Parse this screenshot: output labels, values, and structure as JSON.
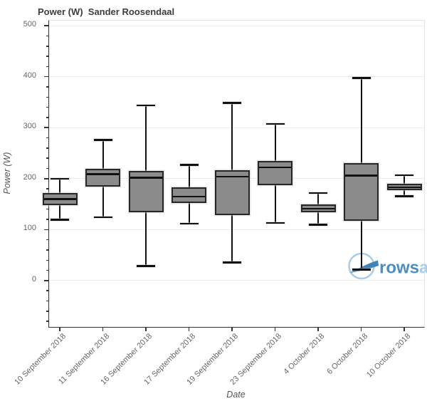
{
  "chart": {
    "title": "Power (W)  Sander Roosendaal",
    "y_axis_label": "Power (W)",
    "x_axis_label": "Date"
  },
  "watermark": {
    "name": "rowsandall-logo",
    "text_primary": "rows",
    "text_secondary": "andall"
  },
  "colors": {
    "box_fill": "#8b8b8b",
    "box_border": "#262626",
    "whisker": "#111111",
    "gridline": "#ececec",
    "axis_spine": "#333333",
    "tick_label": "#666666",
    "title_text": "#3d3d3d",
    "logo_dark_blue": "#4a8ec6",
    "logo_light_blue": "#a7cde9"
  },
  "chart_data": {
    "type": "box",
    "title": "Power (W)  Sander Roosendaal",
    "xlabel": "Date",
    "ylabel": "Power (W)",
    "ylim": [
      -91,
      510
    ],
    "grid": true,
    "yticks": [
      0,
      100,
      200,
      300,
      400,
      500
    ],
    "ytick_labels": [
      "0",
      "100",
      "200",
      "300",
      "400",
      "500"
    ],
    "y_minor_tick_step": 20,
    "categories": [
      "10 September 2018",
      "11 September 2018",
      "16 September 2018",
      "17 September 2018",
      "19 September 2018",
      "23 September 2018",
      "4 October 2018",
      "6 October 2018",
      "10 October 2018"
    ],
    "boxes": [
      {
        "label": "10 September 2018",
        "min": 119,
        "q1": 148,
        "median": 160,
        "q3": 172,
        "max": 200
      },
      {
        "label": "11 September 2018",
        "min": 124,
        "q1": 184,
        "median": 209,
        "q3": 219,
        "max": 276
      },
      {
        "label": "16 September 2018",
        "min": 28,
        "q1": 134,
        "median": 202,
        "q3": 215,
        "max": 344
      },
      {
        "label": "17 September 2018",
        "min": 111,
        "q1": 152,
        "median": 165,
        "q3": 183,
        "max": 227
      },
      {
        "label": "19 September 2018",
        "min": 35,
        "q1": 128,
        "median": 204,
        "q3": 217,
        "max": 349
      },
      {
        "label": "23 September 2018",
        "min": 113,
        "q1": 187,
        "median": 222,
        "q3": 235,
        "max": 308
      },
      {
        "label": "4 October 2018",
        "min": 109,
        "q1": 134,
        "median": 141,
        "q3": 150,
        "max": 172
      },
      {
        "label": "6 October 2018",
        "min": 21,
        "q1": 117,
        "median": 206,
        "q3": 230,
        "max": 398
      },
      {
        "label": "10 October 2018",
        "min": 165,
        "q1": 177,
        "median": 183,
        "q3": 190,
        "max": 207
      }
    ]
  }
}
